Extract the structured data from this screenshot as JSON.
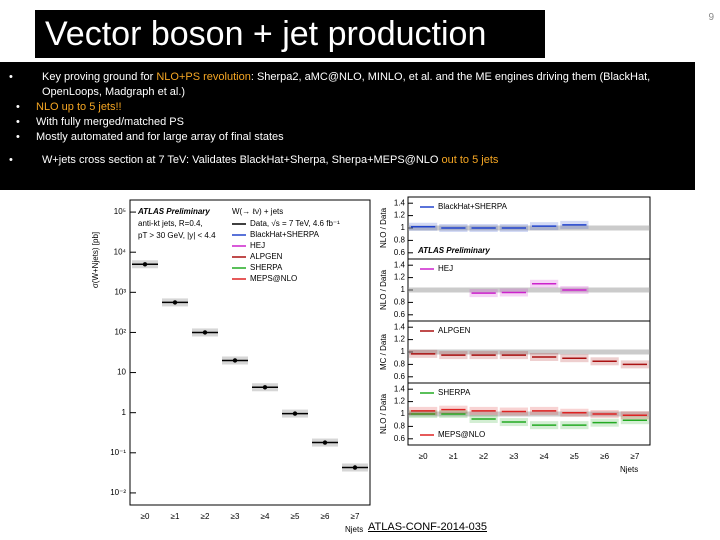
{
  "header": {
    "title": "Vector boson + jet production",
    "page_number": "9"
  },
  "highlight_color": "#f5a623",
  "bullets": [
    {
      "parts": [
        {
          "text": "Key proving ground for ",
          "highlight": false
        },
        {
          "text": "NLO+PS revolution",
          "highlight": true
        },
        {
          "text": ":  Sherpa2, aMC@NLO, MINLO, et al.  and the ME engines driving them (BlackHat, OpenLoops, Madgraph et al.)",
          "highlight": false
        }
      ],
      "sub": [
        {
          "text": "NLO up to 5 jets!!",
          "highlight": true
        },
        {
          "text": "With fully merged/matched PS",
          "highlight": false
        },
        {
          "text": "Mostly automated and for large array of final states",
          "highlight": false
        }
      ]
    },
    {
      "parts": [
        {
          "text": "W+jets cross section at 7 TeV:  Validates BlackHat+Sherpa, Sherpa+MEPS@NLO ",
          "highlight": false
        },
        {
          "text": "out to 5 jets",
          "highlight": true
        }
      ],
      "sub": []
    }
  ],
  "reference": "ATLAS-CONF-2014-035",
  "chart_data": [
    {
      "type": "scatter",
      "log_scale": true,
      "ylabel": "σ(W+Njets) [pb]",
      "xlabel": "Njets",
      "annotations": [
        "ATLAS Preliminary",
        "W(→ ℓν) + jets",
        "anti-kt jets, R=0.4,",
        "pT > 30 GeV, |y| < 4.4"
      ],
      "categories": [
        "≥0",
        "≥1",
        "≥2",
        "≥3",
        "≥4",
        "≥5",
        "≥6",
        "≥7"
      ],
      "ylim": [
        0.005,
        200000
      ],
      "yticks": [
        {
          "value": 0.01,
          "label": "10⁻²"
        },
        {
          "value": 0.1,
          "label": "10⁻¹"
        },
        1,
        10,
        {
          "value": 100,
          "label": "10²"
        },
        {
          "value": 1000,
          "label": "10³"
        },
        {
          "value": 10000,
          "label": "10⁴"
        },
        {
          "value": 100000,
          "label": "10⁵"
        }
      ],
      "series": [
        {
          "name": "Data, √s = 7 TeV, 4.6 fb⁻¹",
          "color": "#000000",
          "values": [
            5000,
            560,
            100,
            20,
            4.3,
            0.95,
            0.18,
            0.043
          ]
        }
      ],
      "legend": [
        {
          "name": "BlackHat+SHERPA",
          "color": "#2244cc"
        },
        {
          "name": "HEJ",
          "color": "#cc22cc"
        },
        {
          "name": "ALPGEN",
          "color": "#aa1111"
        },
        {
          "name": "SHERPA",
          "color": "#22aa22"
        },
        {
          "name": "MEPS@NLO",
          "color": "#dd2222"
        }
      ]
    },
    {
      "type": "line",
      "ylabel": "NLO / Data",
      "annotation": "ATLAS Preliminary",
      "ylim": [
        0.5,
        1.5
      ],
      "yticks": [
        0.6,
        0.8,
        1,
        1.2,
        1.4
      ],
      "series": [
        {
          "name": "BlackHat+SHERPA",
          "color": "#2244cc",
          "values": [
            1.02,
            1.0,
            1.0,
            1.0,
            1.03,
            1.05,
            null,
            null
          ]
        }
      ]
    },
    {
      "type": "line",
      "ylabel": "NLO / Data",
      "ylim": [
        0.5,
        1.5
      ],
      "yticks": [
        0.6,
        0.8,
        1,
        1.2,
        1.4
      ],
      "series": [
        {
          "name": "HEJ",
          "color": "#cc22cc",
          "values": [
            null,
            null,
            0.95,
            0.96,
            1.1,
            1.0,
            null,
            null
          ]
        }
      ]
    },
    {
      "type": "line",
      "ylabel": "MC / Data",
      "ylim": [
        0.5,
        1.5
      ],
      "yticks": [
        0.6,
        0.8,
        1,
        1.2,
        1.4
      ],
      "series": [
        {
          "name": "ALPGEN",
          "color": "#aa1111",
          "values": [
            0.97,
            0.95,
            0.95,
            0.95,
            0.92,
            0.9,
            0.85,
            0.8
          ]
        }
      ]
    },
    {
      "type": "line",
      "ylabel": "NLO / Data",
      "ylim": [
        0.5,
        1.5
      ],
      "yticks": [
        0.6,
        0.8,
        1,
        1.2,
        1.4
      ],
      "categories": [
        "≥0",
        "≥1",
        "≥2",
        "≥3",
        "≥4",
        "≥5",
        "≥6",
        "≥7"
      ],
      "xlabel": "Njets",
      "series": [
        {
          "name": "SHERPA",
          "color": "#22aa22",
          "values": [
            1.0,
            1.0,
            0.92,
            0.87,
            0.82,
            0.82,
            0.86,
            0.9
          ]
        },
        {
          "name": "MEPS@NLO",
          "color": "#dd2222",
          "values": [
            1.05,
            1.07,
            1.05,
            1.04,
            1.05,
            1.02,
            1.0,
            0.98
          ]
        }
      ]
    }
  ]
}
